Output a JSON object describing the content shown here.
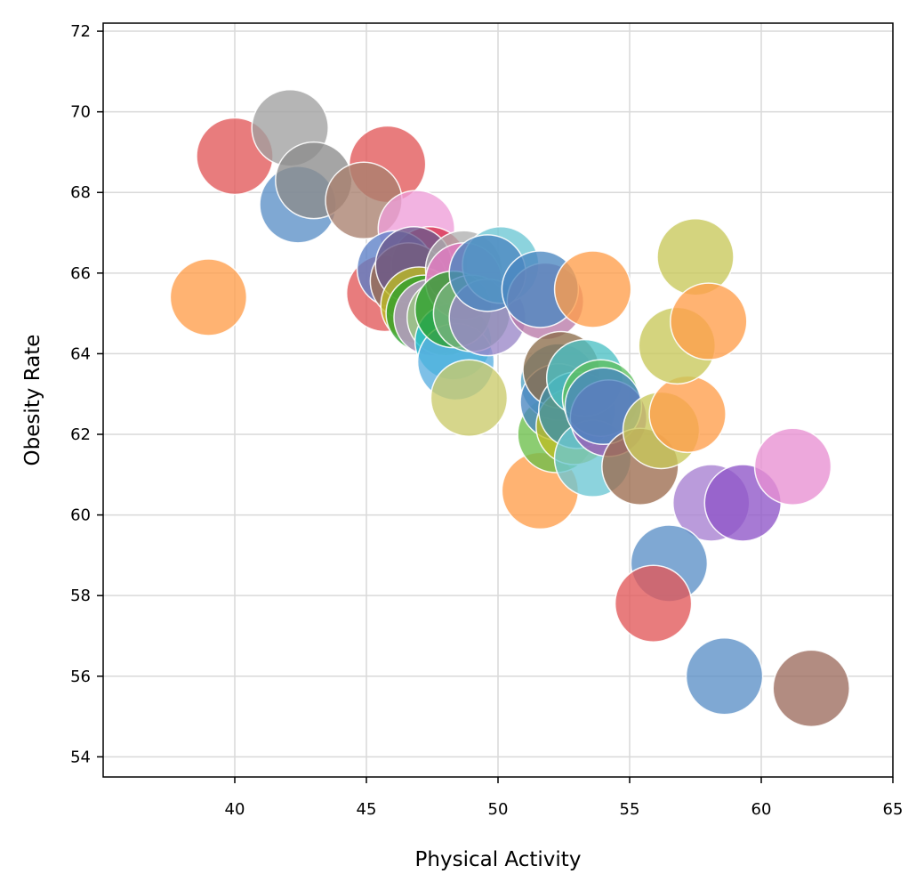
{
  "chart_data": {
    "type": "scatter",
    "title": "",
    "xlabel": "Physical Activity",
    "ylabel": "Obesity Rate",
    "xlim": [
      35,
      65
    ],
    "ylim": [
      53.5,
      72.2
    ],
    "grid": true,
    "x_ticks": [
      40,
      45,
      50,
      55,
      60,
      65
    ],
    "y_ticks": [
      54,
      56,
      58,
      60,
      62,
      64,
      66,
      68,
      70,
      72
    ],
    "tick_labels_x": [
      "40",
      "45",
      "50",
      "55",
      "60",
      "65"
    ],
    "tick_labels_y": [
      "54",
      "56",
      "58",
      "60",
      "62",
      "64",
      "66",
      "68",
      "70",
      "72"
    ],
    "palette": [
      "#4c78a8",
      "#f58518",
      "#e45756",
      "#72b7b2",
      "#54a24b",
      "#eeca3b",
      "#b279a2",
      "#ff9da6",
      "#9d755d",
      "#bab0ac"
    ],
    "points": [
      {
        "x": 39.0,
        "y": 65.4,
        "color": "#ff9e4a"
      },
      {
        "x": 40.0,
        "y": 68.9,
        "color": "#e15759"
      },
      {
        "x": 42.1,
        "y": 69.6,
        "color": "#a0a0a0"
      },
      {
        "x": 42.4,
        "y": 67.7,
        "color": "#5b8fc7"
      },
      {
        "x": 43.0,
        "y": 68.3,
        "color": "#8c8c8c"
      },
      {
        "x": 45.8,
        "y": 68.7,
        "color": "#e15759"
      },
      {
        "x": 44.9,
        "y": 67.8,
        "color": "#a9806e"
      },
      {
        "x": 46.9,
        "y": 67.1,
        "color": "#ee9dd8"
      },
      {
        "x": 45.7,
        "y": 65.5,
        "color": "#e15759"
      },
      {
        "x": 47.4,
        "y": 66.2,
        "color": "#d9304a"
      },
      {
        "x": 46.1,
        "y": 66.1,
        "color": "#5b7fc7"
      },
      {
        "x": 46.6,
        "y": 65.8,
        "color": "#9c6b4e"
      },
      {
        "x": 46.8,
        "y": 66.2,
        "color": "#6a5a8c"
      },
      {
        "x": 47.0,
        "y": 65.2,
        "color": "#bcbd22"
      },
      {
        "x": 47.2,
        "y": 65.0,
        "color": "#2ca02c"
      },
      {
        "x": 47.5,
        "y": 64.9,
        "color": "#c39bd3"
      },
      {
        "x": 48.0,
        "y": 64.9,
        "color": "#98c780"
      },
      {
        "x": 48.3,
        "y": 64.3,
        "color": "#17becf"
      },
      {
        "x": 48.4,
        "y": 63.8,
        "color": "#5aaee0"
      },
      {
        "x": 48.7,
        "y": 66.1,
        "color": "#b0b0b0"
      },
      {
        "x": 48.7,
        "y": 65.8,
        "color": "#e377c2"
      },
      {
        "x": 48.9,
        "y": 62.9,
        "color": "#cbcb6a"
      },
      {
        "x": 48.3,
        "y": 65.1,
        "color": "#2ca02c"
      },
      {
        "x": 49.0,
        "y": 65.0,
        "color": "#79b47f"
      },
      {
        "x": 49.6,
        "y": 64.9,
        "color": "#9a87c8"
      },
      {
        "x": 50.1,
        "y": 66.2,
        "color": "#6cc6d4"
      },
      {
        "x": 49.6,
        "y": 66.0,
        "color": "#4a87c0"
      },
      {
        "x": 51.8,
        "y": 65.3,
        "color": "#b87aa8"
      },
      {
        "x": 51.6,
        "y": 65.6,
        "color": "#4a87c0"
      },
      {
        "x": 53.6,
        "y": 65.6,
        "color": "#ff9e4a"
      },
      {
        "x": 51.6,
        "y": 60.6,
        "color": "#ff9e4a"
      },
      {
        "x": 52.2,
        "y": 62.0,
        "color": "#6cbf4a"
      },
      {
        "x": 52.3,
        "y": 63.3,
        "color": "#4fa3c4"
      },
      {
        "x": 52.3,
        "y": 62.8,
        "color": "#4a87c0"
      },
      {
        "x": 52.4,
        "y": 63.6,
        "color": "#8c6d4a"
      },
      {
        "x": 52.9,
        "y": 62.2,
        "color": "#bcbd22"
      },
      {
        "x": 53.0,
        "y": 62.6,
        "color": "#3f8fa8"
      },
      {
        "x": 53.3,
        "y": 63.4,
        "color": "#4cc0c4"
      },
      {
        "x": 53.6,
        "y": 61.4,
        "color": "#6cc6d4"
      },
      {
        "x": 53.9,
        "y": 62.9,
        "color": "#5dbf5d"
      },
      {
        "x": 54.2,
        "y": 62.4,
        "color": "#9b59b6"
      },
      {
        "x": 54.0,
        "y": 62.7,
        "color": "#4a87c0"
      },
      {
        "x": 55.4,
        "y": 61.2,
        "color": "#9c6b4e"
      },
      {
        "x": 56.2,
        "y": 62.1,
        "color": "#c8c85a"
      },
      {
        "x": 57.2,
        "y": 62.5,
        "color": "#ff9e4a"
      },
      {
        "x": 56.8,
        "y": 64.2,
        "color": "#c8c85a"
      },
      {
        "x": 57.5,
        "y": 66.4,
        "color": "#c8c85a"
      },
      {
        "x": 58.0,
        "y": 64.8,
        "color": "#ff9e4a"
      },
      {
        "x": 58.1,
        "y": 60.3,
        "color": "#a77fd1"
      },
      {
        "x": 59.3,
        "y": 60.3,
        "color": "#8e55c8"
      },
      {
        "x": 61.2,
        "y": 61.2,
        "color": "#e890d2"
      },
      {
        "x": 56.5,
        "y": 58.8,
        "color": "#5b8fc7"
      },
      {
        "x": 55.9,
        "y": 57.8,
        "color": "#e15759"
      },
      {
        "x": 58.6,
        "y": 56.0,
        "color": "#5b8fc7"
      },
      {
        "x": 61.9,
        "y": 55.7,
        "color": "#9c6b5e"
      }
    ]
  }
}
